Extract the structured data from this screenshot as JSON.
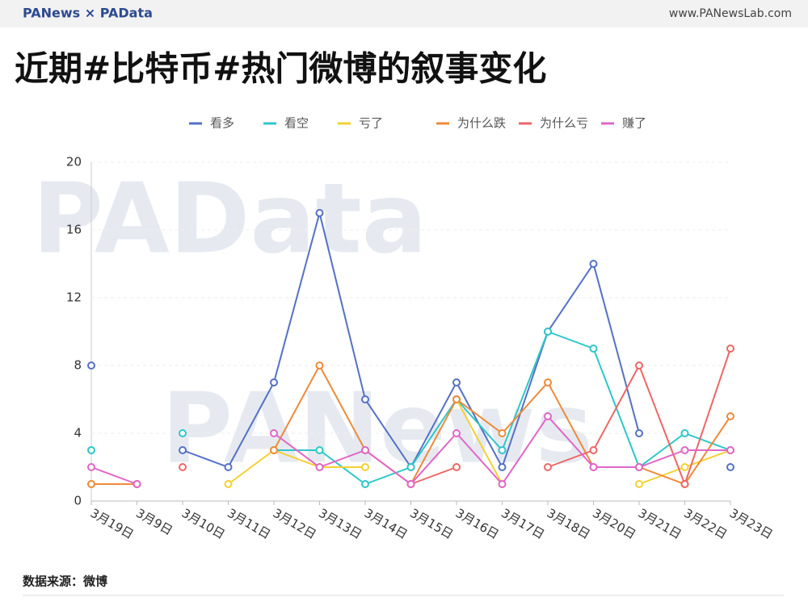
{
  "header": {
    "brand": "PANews × PAData",
    "site": "www.PANewsLab.com"
  },
  "watermarks": [
    "PAData",
    "PANews"
  ],
  "chart_data": {
    "type": "line",
    "title": "近期#比特币#热门微博的叙事变化",
    "categories": [
      "3月19日",
      "3月9日",
      "3月10日",
      "3月11日",
      "3月12日",
      "3月13日",
      "3月14日",
      "3月15日",
      "3月16日",
      "3月17日",
      "3月18日",
      "3月20日",
      "3月21日",
      "3月22日",
      "3月23日"
    ],
    "series": [
      {
        "name": "看多",
        "color": "#5470c6",
        "values": [
          8,
          null,
          3,
          2,
          7,
          17,
          6,
          2,
          7,
          2,
          10,
          14,
          4,
          null,
          2
        ]
      },
      {
        "name": "看空",
        "color": "#2ec7c9",
        "values": [
          3,
          null,
          4,
          null,
          3,
          3,
          1,
          2,
          6,
          3,
          10,
          9,
          2,
          4,
          3
        ]
      },
      {
        "name": "亏了",
        "color": "#f5d033",
        "values": [
          1,
          1,
          null,
          1,
          3,
          2,
          2,
          null,
          6,
          1,
          null,
          null,
          1,
          2,
          3
        ]
      },
      {
        "name": "为什么跌",
        "color": "#ee8a3a",
        "values": [
          1,
          1,
          null,
          null,
          3,
          8,
          3,
          1,
          6,
          4,
          7,
          2,
          2,
          1,
          5
        ]
      },
      {
        "name": "为什么亏",
        "color": "#ee6666",
        "values": [
          null,
          null,
          2,
          null,
          null,
          null,
          null,
          1,
          2,
          null,
          2,
          3,
          8,
          1,
          9
        ]
      },
      {
        "name": "赚了",
        "color": "#e066c8",
        "values": [
          2,
          1,
          null,
          null,
          4,
          2,
          3,
          1,
          4,
          1,
          5,
          2,
          2,
          3,
          3
        ]
      }
    ],
    "ylim": [
      0,
      20
    ],
    "yticks": [
      0,
      4,
      8,
      12,
      16,
      20
    ],
    "grid": true,
    "legend": "top",
    "source": "数据来源：微博"
  }
}
